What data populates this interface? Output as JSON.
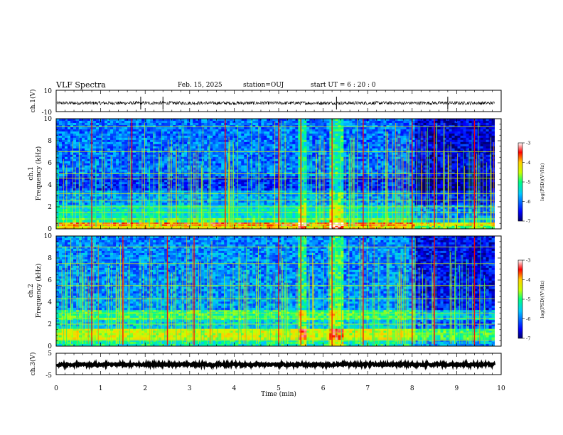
{
  "header": {
    "title": "VLF Spectra",
    "date": "Feb. 15, 2025",
    "station": "station=OUJ",
    "start_ut": "start  UT =   6  : 20 : 0"
  },
  "chart_data": [
    {
      "type": "line",
      "name": "waveform_ch1",
      "ylabel": "ch.1(V)",
      "ylim": [
        -10,
        10
      ],
      "y_tick_labels": [
        "10",
        "-10"
      ],
      "xlim": [
        0,
        10
      ],
      "baseline": -2,
      "spikes_x_min": [
        1.9,
        2.4,
        6.3,
        8.8
      ],
      "data_end_min": 9.85
    },
    {
      "type": "heatmap",
      "name": "spectrogram_ch1",
      "ylabel": "ch.1 Frequency (kHz)",
      "ylabel_line1": "ch.1",
      "ylabel_line2": "Frequency (kHz)",
      "ylim": [
        0,
        10
      ],
      "y_ticks": [
        0,
        2,
        4,
        6,
        8,
        10
      ],
      "xlim": [
        0,
        10
      ],
      "data_end_min": 9.85,
      "colorbar": {
        "label": "log(PSD)(V²/Hz)",
        "range": [
          -7,
          -3
        ],
        "tick_labels": [
          "-3",
          "-4",
          "-5",
          "-6",
          "-7"
        ]
      },
      "background_bands_khz": [
        {
          "from": 0.0,
          "to": 0.3,
          "level": -4.2
        },
        {
          "from": 0.3,
          "to": 0.6,
          "level": -3.6
        },
        {
          "from": 0.6,
          "to": 1.0,
          "level": -5.0
        },
        {
          "from": 1.0,
          "to": 2.2,
          "level": -5.3
        },
        {
          "from": 2.2,
          "to": 3.5,
          "level": -5.8
        },
        {
          "from": 3.5,
          "to": 4.8,
          "level": -6.3
        },
        {
          "from": 4.8,
          "to": 10.0,
          "level": -6.0
        }
      ],
      "line_khz": [
        0.4,
        0.9,
        1.5,
        2.0,
        2.6,
        3.2,
        4.6,
        5.0,
        7.0,
        9.3
      ],
      "bursts_min": [
        0.8,
        1.7,
        3.8,
        5.0,
        5.5,
        6.2,
        6.9,
        8.0,
        8.5,
        9.4
      ]
    },
    {
      "type": "heatmap",
      "name": "spectrogram_ch2",
      "ylabel": "ch.2 Frequency (kHz)",
      "ylabel_line1": "ch.2",
      "ylabel_line2": "Frequency (kHz)",
      "ylim": [
        0,
        10
      ],
      "y_ticks": [
        0,
        2,
        4,
        6,
        8,
        10
      ],
      "xlim": [
        0,
        10
      ],
      "data_end_min": 9.85,
      "colorbar": {
        "label": "log(PSD)(V²/Hz)",
        "range": [
          -7,
          -3
        ],
        "tick_labels": [
          "-3",
          "-4",
          "-5",
          "-6",
          "-7"
        ]
      },
      "background_bands_khz": [
        {
          "from": 0.0,
          "to": 0.6,
          "level": -5.2
        },
        {
          "from": 0.6,
          "to": 1.6,
          "level": -4.4
        },
        {
          "from": 1.6,
          "to": 2.4,
          "level": -5.5
        },
        {
          "from": 2.4,
          "to": 3.3,
          "level": -5.0
        },
        {
          "from": 3.3,
          "to": 4.6,
          "level": -5.8
        },
        {
          "from": 4.6,
          "to": 10.0,
          "level": -5.9
        }
      ],
      "line_khz": [
        0.5,
        1.2,
        2.0,
        2.5,
        3.0,
        4.3,
        5.5,
        7.5,
        9.0
      ],
      "bursts_min": [
        0.8,
        1.5,
        2.5,
        3.1,
        5.0,
        5.5,
        6.2,
        6.9,
        8.0,
        8.5,
        9.4
      ]
    },
    {
      "type": "line",
      "name": "waveform_ch3",
      "ylabel": "ch.3(V)",
      "ylim": [
        -5,
        5
      ],
      "y_tick_labels": [
        "5",
        "-5"
      ],
      "xlim": [
        0,
        10
      ],
      "baseline": -0.3,
      "data_end_min": 9.85,
      "xlabel": "Time  (min)",
      "x_ticks": [
        0,
        1,
        2,
        3,
        4,
        5,
        6,
        7,
        8,
        9,
        10
      ]
    }
  ]
}
